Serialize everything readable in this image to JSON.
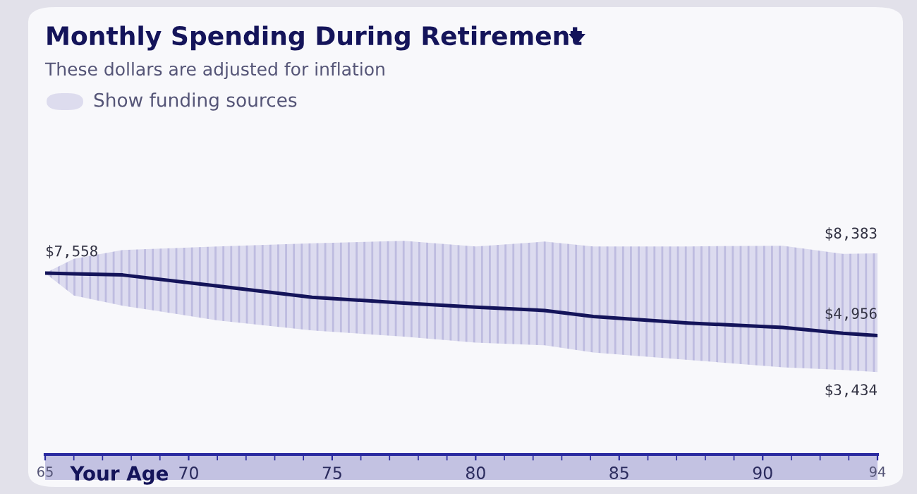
{
  "chart_data": {
    "type": "line",
    "title": "Monthly Spending During Retirement",
    "subtitle": "These dollars are adjusted for inflation",
    "xlabel": "Your Age",
    "x": [
      65,
      66,
      67.7,
      71,
      74.3,
      77.5,
      80,
      82.4,
      84.1,
      87.4,
      90.7,
      92.8,
      94
    ],
    "series": [
      {
        "color": "#14145a",
        "values": [
          7558,
          7530,
          7480,
          7020,
          6550,
          6310,
          6140,
          6000,
          5750,
          5480,
          5290,
          5050,
          4956
        ],
        "value_labels": [
          "$7,558",
          null,
          null,
          null,
          null,
          null,
          null,
          null,
          null,
          null,
          null,
          null,
          "$4,956"
        ],
        "lower": [
          7558,
          6620,
          6200,
          5590,
          5170,
          4910,
          4660,
          4550,
          4250,
          3940,
          3630,
          3520,
          3434
        ],
        "upper": [
          7558,
          8150,
          8520,
          8670,
          8800,
          8900,
          8670,
          8870,
          8670,
          8670,
          8700,
          8360,
          8383
        ]
      }
    ],
    "xlim": [
      65,
      94
    ],
    "xticks": [
      65,
      70,
      75,
      80,
      85,
      90,
      94
    ],
    "marker": "none",
    "line_style": "solid",
    "annotations": [
      {
        "text": "$8,383",
        "x": 94,
        "y": 8383
      },
      {
        "text": "$3,434",
        "x": 94,
        "y": 3434
      },
      "Show funding sources"
    ]
  }
}
